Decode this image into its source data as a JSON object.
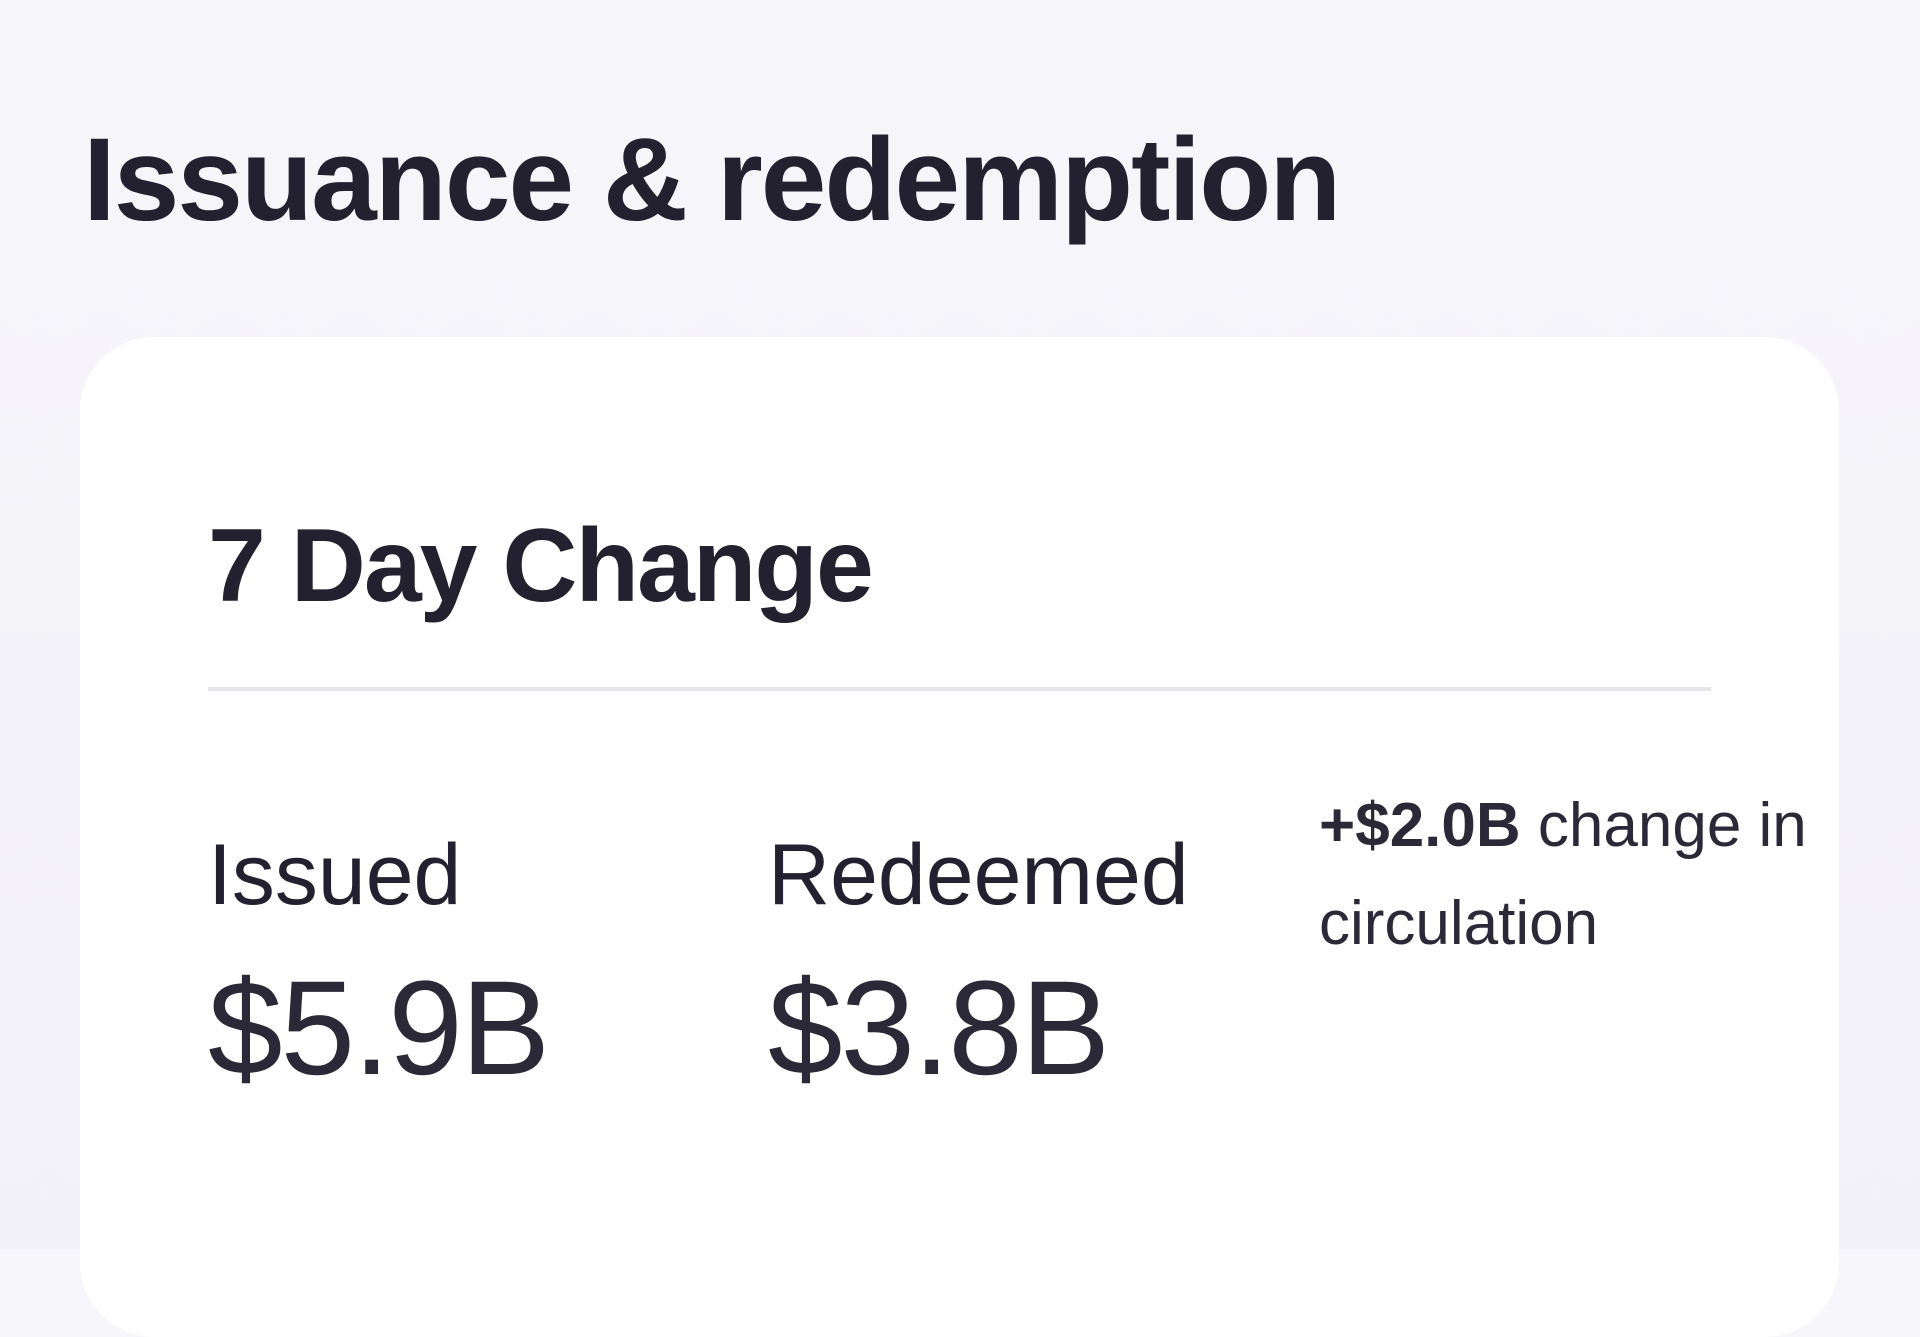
{
  "section": {
    "title": "Issuance & redemption"
  },
  "card": {
    "title": "7 Day Change",
    "issued": {
      "label": "Issued",
      "value": "$5.9B"
    },
    "redeemed": {
      "label": "Redeemed",
      "value": "$3.8B"
    },
    "net_change": {
      "value": "+$2.0B",
      "text": "change in circulation"
    }
  }
}
